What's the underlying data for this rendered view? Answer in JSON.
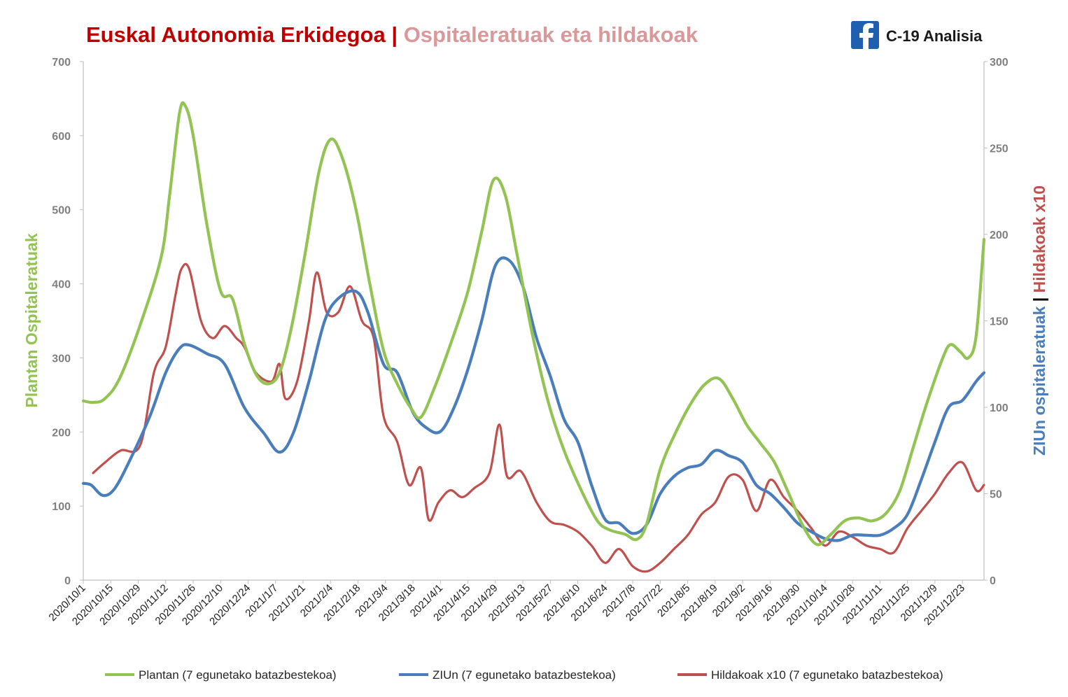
{
  "title": {
    "part1": "Euskal Autonomia Erkidegoa | ",
    "part2": "Ospitaleratuak  eta hildakoak",
    "color1": "#c00000",
    "color2": "#d9999b"
  },
  "brand": {
    "label": "C-19 Analisia",
    "icon": "facebook-icon",
    "icon_color": "#1f5fb0"
  },
  "chart_data": {
    "type": "line",
    "x_categories": [
      "2020/10/1",
      "2020/10/15",
      "2020/10/29",
      "2020/11/12",
      "2020/11/26",
      "2020/12/10",
      "2020/12/24",
      "2021/1/7",
      "2021/1/21",
      "2021/2/4",
      "2021/2/18",
      "2021/3/4",
      "2021/3/18",
      "2021/4/1",
      "2021/4/15",
      "2021/4/29",
      "2021/5/13",
      "2021/5/27",
      "2021/6/10",
      "2021/6/24",
      "2021/7/8",
      "2021/7/22",
      "2021/8/5",
      "2021/8/19",
      "2021/9/2",
      "2021/9/16",
      "2021/9/30",
      "2021/10/14",
      "2021/10/28",
      "2021/11/11",
      "2021/11/25",
      "2021/12/9",
      "2021/12/23"
    ],
    "y_left": {
      "label": "Plantan Ospitaleratuak",
      "min": 0,
      "max": 700,
      "ticks": [
        "0",
        "100",
        "200",
        "300",
        "400",
        "500",
        "600",
        "700"
      ],
      "color": "#92c353"
    },
    "y_right": {
      "label_part1": "ZIUn ospitaleratuak",
      "label_sep": " | ",
      "label_part2": "Hildakoak x10",
      "min": 0,
      "max": 300,
      "ticks": [
        "0",
        "50",
        "100",
        "150",
        "200",
        "250",
        "300"
      ],
      "color1": "#4a7ebb",
      "color2": "#c0504d"
    },
    "x_start": "2020/10/1",
    "x_end": "2022/1/3",
    "grid": false,
    "legend_position": "bottom",
    "series": [
      {
        "name": "Plantan (7 egunetako batazbestekoa)",
        "axis": "left",
        "color": "#92c353",
        "keypoints": [
          [
            "2020/10/1",
            242
          ],
          [
            "2020/10/6",
            240
          ],
          [
            "2020/10/12",
            245
          ],
          [
            "2020/10/20",
            275
          ],
          [
            "2020/11/1",
            360
          ],
          [
            "2020/11/10",
            440
          ],
          [
            "2020/11/14",
            520
          ],
          [
            "2020/11/19",
            630
          ],
          [
            "2020/11/22",
            640
          ],
          [
            "2020/11/26",
            600
          ],
          [
            "2020/12/3",
            480
          ],
          [
            "2020/12/10",
            390
          ],
          [
            "2020/12/16",
            380
          ],
          [
            "2020/12/22",
            320
          ],
          [
            "2020/12/28",
            278
          ],
          [
            "2021/1/3",
            265
          ],
          [
            "2021/1/9",
            280
          ],
          [
            "2021/1/15",
            340
          ],
          [
            "2021/1/22",
            440
          ],
          [
            "2021/1/29",
            550
          ],
          [
            "2021/2/4",
            595
          ],
          [
            "2021/2/10",
            570
          ],
          [
            "2021/2/17",
            500
          ],
          [
            "2021/2/24",
            400
          ],
          [
            "2021/3/3",
            310
          ],
          [
            "2021/3/10",
            265
          ],
          [
            "2021/3/17",
            232
          ],
          [
            "2021/3/22",
            220
          ],
          [
            "2021/3/29",
            260
          ],
          [
            "2021/4/7",
            325
          ],
          [
            "2021/4/15",
            390
          ],
          [
            "2021/4/22",
            470
          ],
          [
            "2021/4/28",
            540
          ],
          [
            "2021/5/4",
            520
          ],
          [
            "2021/5/10",
            440
          ],
          [
            "2021/5/18",
            330
          ],
          [
            "2021/5/26",
            240
          ],
          [
            "2021/6/3",
            175
          ],
          [
            "2021/6/12",
            120
          ],
          [
            "2021/6/20",
            80
          ],
          [
            "2021/6/26",
            68
          ],
          [
            "2021/7/4",
            62
          ],
          [
            "2021/7/10",
            55
          ],
          [
            "2021/7/15",
            75
          ],
          [
            "2021/7/22",
            150
          ],
          [
            "2021/7/30",
            200
          ],
          [
            "2021/8/7",
            240
          ],
          [
            "2021/8/14",
            265
          ],
          [
            "2021/8/21",
            272
          ],
          [
            "2021/8/28",
            245
          ],
          [
            "2021/9/4",
            210
          ],
          [
            "2021/9/11",
            185
          ],
          [
            "2021/9/18",
            160
          ],
          [
            "2021/9/25",
            120
          ],
          [
            "2021/10/3",
            72
          ],
          [
            "2021/10/10",
            48
          ],
          [
            "2021/10/17",
            62
          ],
          [
            "2021/10/24",
            80
          ],
          [
            "2021/10/31",
            84
          ],
          [
            "2021/11/7",
            80
          ],
          [
            "2021/11/14",
            90
          ],
          [
            "2021/11/21",
            120
          ],
          [
            "2021/11/28",
            180
          ],
          [
            "2021/12/5",
            240
          ],
          [
            "2021/12/13",
            300
          ],
          [
            "2021/12/17",
            318
          ],
          [
            "2021/12/22",
            308
          ],
          [
            "2021/12/26",
            300
          ],
          [
            "2021/12/30",
            330
          ],
          [
            "2022/1/3",
            460
          ]
        ]
      },
      {
        "name": "ZIUn (7 egunetako batazbestekoa)",
        "axis": "right",
        "color": "#4a7ebb",
        "keypoints": [
          [
            "2020/10/1",
            56
          ],
          [
            "2020/10/5",
            55
          ],
          [
            "2020/10/11",
            49
          ],
          [
            "2020/10/17",
            53
          ],
          [
            "2020/10/25",
            70
          ],
          [
            "2020/11/4",
            95
          ],
          [
            "2020/11/12",
            120
          ],
          [
            "2020/11/19",
            134
          ],
          [
            "2020/11/24",
            136
          ],
          [
            "2020/12/3",
            131
          ],
          [
            "2020/12/12",
            125
          ],
          [
            "2020/12/22",
            100
          ],
          [
            "2021/1/1",
            85
          ],
          [
            "2021/1/9",
            74
          ],
          [
            "2021/1/16",
            85
          ],
          [
            "2021/1/24",
            115
          ],
          [
            "2021/2/1",
            150
          ],
          [
            "2021/2/8",
            163
          ],
          [
            "2021/2/17",
            167
          ],
          [
            "2021/2/23",
            155
          ],
          [
            "2021/3/3",
            125
          ],
          [
            "2021/3/10",
            120
          ],
          [
            "2021/3/18",
            97
          ],
          [
            "2021/3/25",
            88
          ],
          [
            "2021/4/1",
            86
          ],
          [
            "2021/4/8",
            100
          ],
          [
            "2021/4/15",
            122
          ],
          [
            "2021/4/22",
            150
          ],
          [
            "2021/4/29",
            182
          ],
          [
            "2021/5/6",
            185
          ],
          [
            "2021/5/13",
            170
          ],
          [
            "2021/5/20",
            140
          ],
          [
            "2021/5/27",
            118
          ],
          [
            "2021/6/3",
            93
          ],
          [
            "2021/6/10",
            80
          ],
          [
            "2021/6/17",
            55
          ],
          [
            "2021/6/24",
            35
          ],
          [
            "2021/7/1",
            33
          ],
          [
            "2021/7/8",
            27
          ],
          [
            "2021/7/15",
            32
          ],
          [
            "2021/7/22",
            50
          ],
          [
            "2021/7/29",
            60
          ],
          [
            "2021/8/5",
            65
          ],
          [
            "2021/8/12",
            67
          ],
          [
            "2021/8/19",
            75
          ],
          [
            "2021/8/26",
            72
          ],
          [
            "2021/9/2",
            68
          ],
          [
            "2021/9/9",
            55
          ],
          [
            "2021/9/16",
            50
          ],
          [
            "2021/9/23",
            42
          ],
          [
            "2021/9/30",
            33
          ],
          [
            "2021/10/7",
            28
          ],
          [
            "2021/10/14",
            24
          ],
          [
            "2021/10/21",
            23
          ],
          [
            "2021/10/28",
            26
          ],
          [
            "2021/11/4",
            26
          ],
          [
            "2021/11/11",
            26
          ],
          [
            "2021/11/18",
            30
          ],
          [
            "2021/11/25",
            38
          ],
          [
            "2021/12/2",
            58
          ],
          [
            "2021/12/9",
            80
          ],
          [
            "2021/12/16",
            100
          ],
          [
            "2021/12/23",
            104
          ],
          [
            "2021/12/30",
            115
          ],
          [
            "2022/1/3",
            120
          ]
        ]
      },
      {
        "name": "Hildakoak x10 (7 egunetako batazbestekoa)",
        "axis": "right",
        "color": "#c0504d",
        "keypoints": [
          [
            "2020/10/6",
            62
          ],
          [
            "2020/10/12",
            68
          ],
          [
            "2020/10/20",
            75
          ],
          [
            "2020/10/30",
            78
          ],
          [
            "2020/11/6",
            120
          ],
          [
            "2020/11/12",
            135
          ],
          [
            "2020/11/17",
            165
          ],
          [
            "2020/11/20",
            180
          ],
          [
            "2020/11/24",
            180
          ],
          [
            "2020/11/30",
            150
          ],
          [
            "2020/12/6",
            140
          ],
          [
            "2020/12/12",
            147
          ],
          [
            "2020/12/18",
            140
          ],
          [
            "2020/12/22",
            135
          ],
          [
            "2020/12/28",
            120
          ],
          [
            "2021/1/5",
            115
          ],
          [
            "2021/1/9",
            125
          ],
          [
            "2021/1/12",
            105
          ],
          [
            "2021/1/18",
            115
          ],
          [
            "2021/1/24",
            150
          ],
          [
            "2021/1/28",
            178
          ],
          [
            "2021/2/2",
            155
          ],
          [
            "2021/2/8",
            155
          ],
          [
            "2021/2/14",
            170
          ],
          [
            "2021/2/20",
            150
          ],
          [
            "2021/2/26",
            140
          ],
          [
            "2021/3/3",
            95
          ],
          [
            "2021/3/10",
            80
          ],
          [
            "2021/3/16",
            55
          ],
          [
            "2021/3/22",
            65
          ],
          [
            "2021/3/26",
            35
          ],
          [
            "2021/3/31",
            45
          ],
          [
            "2021/4/6",
            52
          ],
          [
            "2021/4/12",
            48
          ],
          [
            "2021/4/18",
            53
          ],
          [
            "2021/4/26",
            62
          ],
          [
            "2021/5/1",
            90
          ],
          [
            "2021/5/5",
            60
          ],
          [
            "2021/5/12",
            63
          ],
          [
            "2021/5/20",
            45
          ],
          [
            "2021/5/27",
            34
          ],
          [
            "2021/6/3",
            32
          ],
          [
            "2021/6/10",
            28
          ],
          [
            "2021/6/17",
            20
          ],
          [
            "2021/6/24",
            10
          ],
          [
            "2021/7/1",
            18
          ],
          [
            "2021/7/8",
            8
          ],
          [
            "2021/7/15",
            5
          ],
          [
            "2021/7/22",
            10
          ],
          [
            "2021/7/29",
            18
          ],
          [
            "2021/8/5",
            26
          ],
          [
            "2021/8/12",
            38
          ],
          [
            "2021/8/19",
            45
          ],
          [
            "2021/8/26",
            60
          ],
          [
            "2021/9/2",
            58
          ],
          [
            "2021/9/9",
            40
          ],
          [
            "2021/9/16",
            58
          ],
          [
            "2021/9/23",
            48
          ],
          [
            "2021/9/30",
            40
          ],
          [
            "2021/10/7",
            30
          ],
          [
            "2021/10/14",
            20
          ],
          [
            "2021/10/21",
            28
          ],
          [
            "2021/10/28",
            25
          ],
          [
            "2021/11/4",
            20
          ],
          [
            "2021/11/11",
            18
          ],
          [
            "2021/11/18",
            16
          ],
          [
            "2021/11/25",
            30
          ],
          [
            "2021/12/2",
            40
          ],
          [
            "2021/12/9",
            50
          ],
          [
            "2021/12/16",
            62
          ],
          [
            "2021/12/23",
            68
          ],
          [
            "2021/12/30",
            52
          ],
          [
            "2022/1/3",
            55
          ]
        ]
      }
    ]
  }
}
